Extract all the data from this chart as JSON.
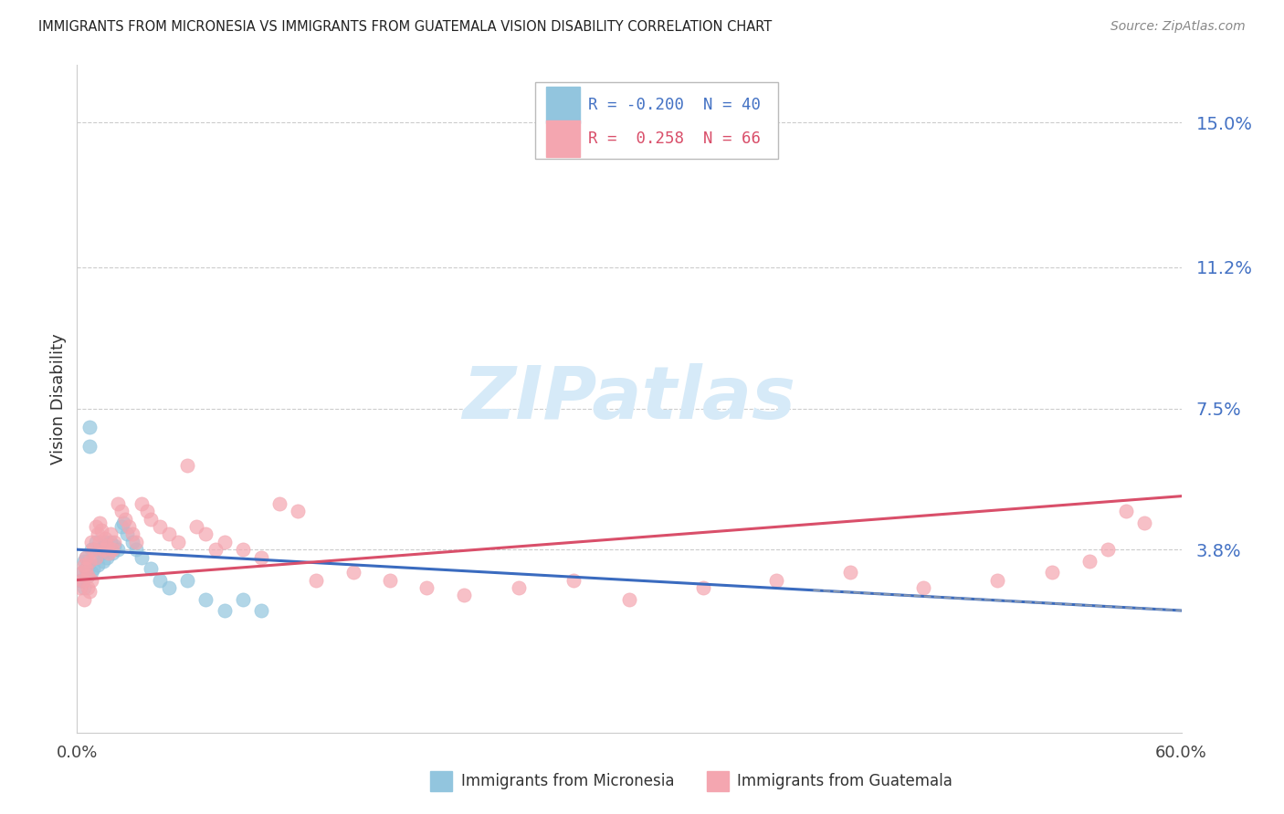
{
  "title": "IMMIGRANTS FROM MICRONESIA VS IMMIGRANTS FROM GUATEMALA VISION DISABILITY CORRELATION CHART",
  "source": "Source: ZipAtlas.com",
  "ylabel": "Vision Disability",
  "ytick_vals": [
    0.038,
    0.075,
    0.112,
    0.15
  ],
  "ytick_labels": [
    "3.8%",
    "7.5%",
    "11.2%",
    "15.0%"
  ],
  "xmin": 0.0,
  "xmax": 0.6,
  "ymin": -0.01,
  "ymax": 0.165,
  "color_micronesia": "#92c5de",
  "color_guatemala": "#f4a6b0",
  "color_micronesia_line": "#3a6bbf",
  "color_guatemala_line": "#d94f6a",
  "color_dash": "#aaaaaa",
  "watermark_color": "#d6eaf8",
  "legend_box_edge": "#aaaaaa",
  "grid_color": "#cccccc"
}
